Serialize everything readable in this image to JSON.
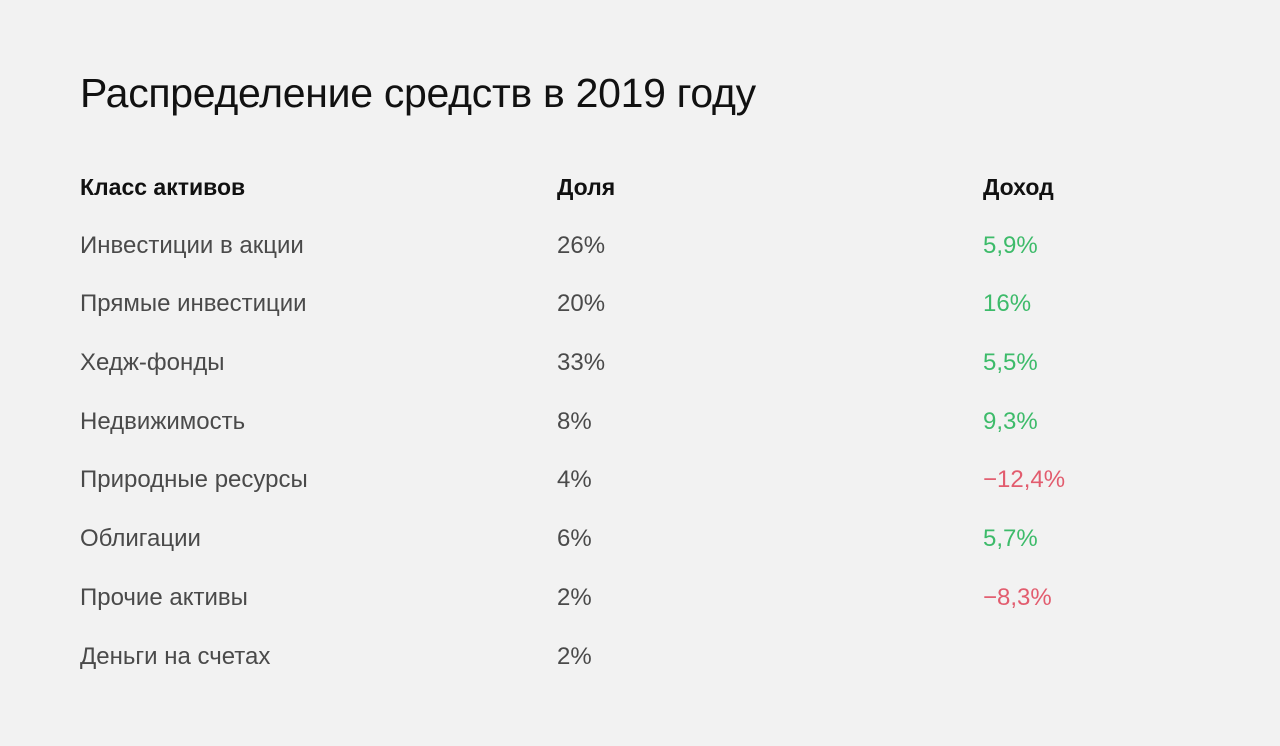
{
  "title": "Распределение средств в 2019 году",
  "colors": {
    "background": "#f2f2f2",
    "text": "#111111",
    "muted_text": "#4a4a4a",
    "positive": "#3dbb6a",
    "negative": "#e25c6e"
  },
  "table": {
    "headers": {
      "asset": "Класс активов",
      "share": "Доля",
      "return": "Доход"
    },
    "rows": [
      {
        "asset": "Инвестиции в акции",
        "share": "26%",
        "return": "5,9%",
        "sign": "positive"
      },
      {
        "asset": "Прямые инвестиции",
        "share": "20%",
        "return": "16%",
        "sign": "positive"
      },
      {
        "asset": "Хедж-фонды",
        "share": "33%",
        "return": "5,5%",
        "sign": "positive"
      },
      {
        "asset": "Недвижимость",
        "share": "8%",
        "return": "9,3%",
        "sign": "positive"
      },
      {
        "asset": "Природные ресурсы",
        "share": "4%",
        "return": "−12,4%",
        "sign": "negative"
      },
      {
        "asset": "Облигации",
        "share": "6%",
        "return": "5,7%",
        "sign": "positive"
      },
      {
        "asset": "Прочие активы",
        "share": "2%",
        "return": "−8,3%",
        "sign": "negative"
      },
      {
        "asset": "Деньги на счетах",
        "share": "2%",
        "return": "",
        "sign": "none"
      }
    ]
  }
}
